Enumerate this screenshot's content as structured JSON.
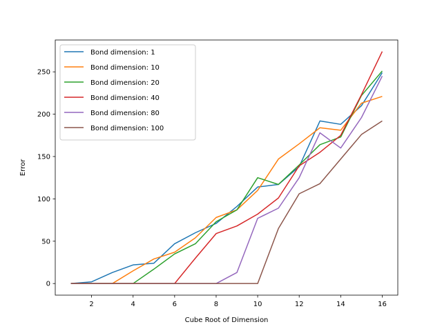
{
  "chart_data": {
    "type": "line",
    "title": "",
    "xlabel": "Cube Root of Dimension",
    "ylabel": "Error",
    "xlim": [
      0.25,
      16.75
    ],
    "ylim": [
      -13.7,
      287.6
    ],
    "x_ticks": [
      2,
      4,
      6,
      8,
      10,
      12,
      14,
      16
    ],
    "y_ticks": [
      0,
      50,
      100,
      150,
      200,
      250
    ],
    "grid": false,
    "legend_position": "top-left",
    "x": [
      1,
      2,
      3,
      4,
      5,
      6,
      7,
      8,
      9,
      10,
      11,
      12,
      13,
      14,
      15,
      16
    ],
    "series": [
      {
        "name": "Bond dimension: 1",
        "color": "#1f77b4",
        "values": [
          0,
          2,
          13,
          22,
          24,
          47,
          60,
          71,
          91,
          114,
          117,
          138,
          192,
          188,
          210,
          249
        ]
      },
      {
        "name": "Bond dimension: 10",
        "color": "#ff7f0e",
        "values": [
          0,
          0,
          0,
          15,
          29,
          37,
          54,
          78,
          87,
          110,
          147,
          165,
          184,
          181,
          213,
          221
        ]
      },
      {
        "name": "Bond dimension: 20",
        "color": "#2ca02c",
        "values": [
          0,
          0,
          0,
          0,
          17,
          35,
          47,
          73,
          87,
          125,
          117,
          140,
          164,
          173,
          222,
          251
        ]
      },
      {
        "name": "Bond dimension: 40",
        "color": "#d62728",
        "values": [
          0,
          0,
          0,
          0,
          0,
          0,
          30,
          59,
          68,
          82,
          101,
          139,
          155,
          175,
          223,
          274
        ]
      },
      {
        "name": "Bond dimension: 80",
        "color": "#9467bd",
        "values": [
          0,
          0,
          0,
          0,
          0,
          0,
          0,
          0,
          13,
          77,
          89,
          125,
          178,
          160,
          196,
          245
        ]
      },
      {
        "name": "Bond dimension: 100",
        "color": "#8c564b",
        "values": [
          0,
          0,
          0,
          0,
          0,
          0,
          0,
          0,
          0,
          0,
          65,
          106,
          118,
          147,
          176,
          192
        ]
      }
    ]
  }
}
